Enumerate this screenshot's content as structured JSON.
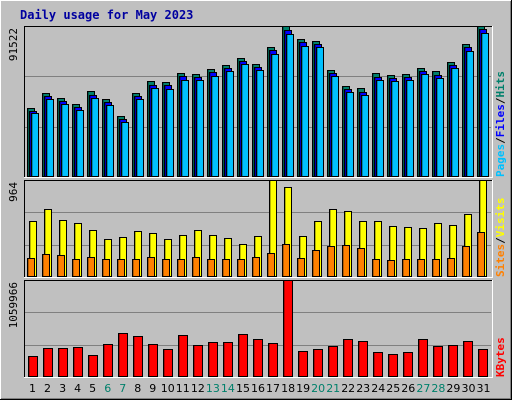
{
  "chart_data": [
    {
      "type": "bar",
      "title": "Daily usage for May 2023",
      "categories": [
        "1",
        "2",
        "3",
        "4",
        "5",
        "6",
        "7",
        "8",
        "9",
        "10",
        "11",
        "12",
        "13",
        "14",
        "15",
        "16",
        "17",
        "18",
        "19",
        "20",
        "21",
        "22",
        "23",
        "24",
        "25",
        "26",
        "27",
        "28",
        "29",
        "30",
        "31"
      ],
      "weekend_days": [
        "6",
        "7",
        "13",
        "14",
        "20",
        "21",
        "27",
        "28"
      ],
      "y_max_label": "91522",
      "ylim": [
        0,
        91522
      ],
      "legend": [
        "Pages",
        "Files",
        "Hits"
      ],
      "series": [
        {
          "name": "Hits",
          "color": "#00806b",
          "values": [
            41600,
            50700,
            47700,
            44300,
            51900,
            47500,
            36800,
            51200,
            58000,
            57400,
            62900,
            62300,
            65400,
            68000,
            72400,
            68700,
            78700,
            91522,
            83500,
            82500,
            64900,
            55200,
            53700,
            62800,
            61800,
            62400,
            66200,
            64000,
            69800,
            80500,
            91522
          ]
        },
        {
          "name": "Files",
          "color": "#0000ff",
          "values": [
            40000,
            48800,
            45800,
            42400,
            50000,
            45600,
            35200,
            49300,
            56000,
            55500,
            61000,
            60400,
            63500,
            66000,
            70500,
            66800,
            76800,
            89000,
            81600,
            80600,
            63000,
            53300,
            51800,
            60900,
            59900,
            60500,
            64200,
            62000,
            67800,
            78500,
            89500
          ]
        },
        {
          "name": "Pages",
          "color": "#00c0ff",
          "values": [
            38500,
            47000,
            44000,
            40500,
            48000,
            43700,
            33500,
            47500,
            54000,
            53500,
            59000,
            58500,
            61500,
            64000,
            68500,
            64800,
            74800,
            86500,
            79500,
            78500,
            61000,
            51500,
            50000,
            59000,
            58000,
            58500,
            62500,
            60000,
            66000,
            76500,
            87500
          ]
        }
      ]
    },
    {
      "type": "bar",
      "y_max_label": "964",
      "ylim": [
        0,
        964
      ],
      "legend": [
        "Sites",
        "Visits"
      ],
      "series": [
        {
          "name": "Visits",
          "color": "#ffff00",
          "values": [
            560,
            680,
            570,
            540,
            470,
            380,
            400,
            460,
            440,
            380,
            420,
            470,
            420,
            390,
            330,
            410,
            964,
            890,
            410,
            560,
            680,
            660,
            560,
            560,
            510,
            500,
            490,
            540,
            520,
            630,
            960
          ]
        },
        {
          "name": "Sites",
          "color": "#ff8000",
          "values": [
            190,
            230,
            220,
            180,
            200,
            180,
            180,
            180,
            200,
            180,
            180,
            200,
            180,
            180,
            180,
            200,
            240,
            330,
            190,
            270,
            310,
            320,
            290,
            180,
            170,
            180,
            180,
            180,
            190,
            310,
            450
          ]
        }
      ]
    },
    {
      "type": "bar",
      "y_max_label": "1059966",
      "ylim": [
        0,
        1059966
      ],
      "legend": [
        "KBytes"
      ],
      "series": [
        {
          "name": "KBytes",
          "color": "#ff0000",
          "values": [
            233000,
            319000,
            317000,
            323000,
            236000,
            364000,
            486000,
            444000,
            357000,
            302000,
            460000,
            354000,
            385000,
            383000,
            475000,
            417000,
            369000,
            1059966,
            282000,
            309000,
            342000,
            410000,
            393000,
            277000,
            246000,
            276000,
            415000,
            336000,
            350000,
            389000,
            303000
          ]
        }
      ]
    }
  ]
}
